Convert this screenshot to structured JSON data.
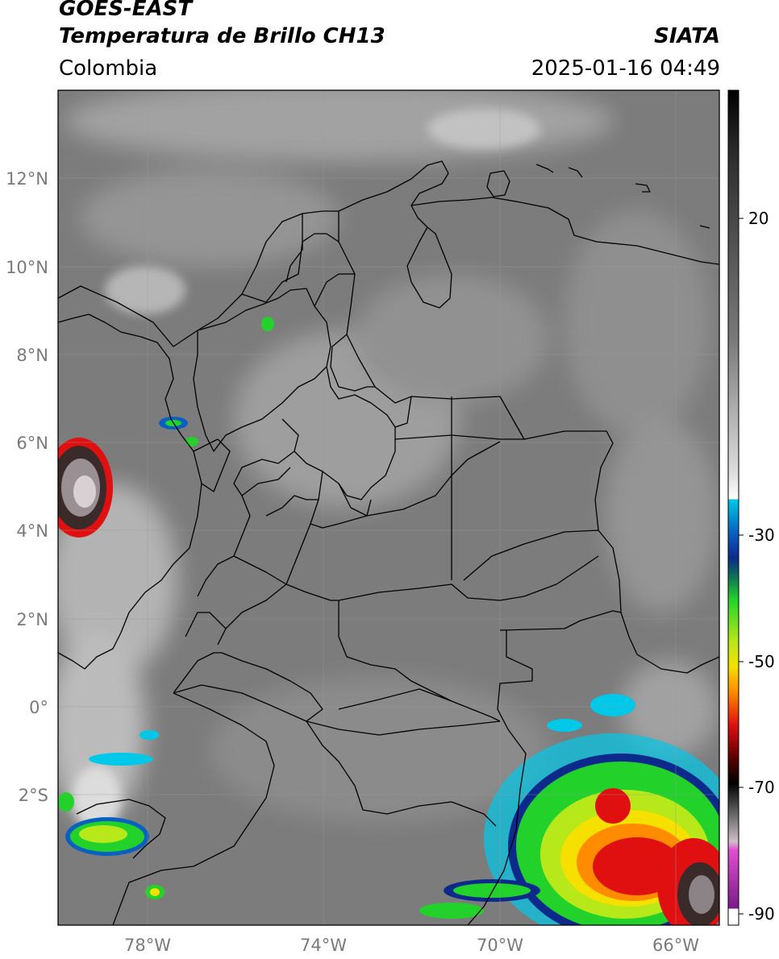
{
  "header": {
    "satellite": "GOES-EAST",
    "product": "Temperatura de Brillo CH13",
    "region": "Colombia",
    "agency": "SIATA",
    "datetime": "2025-01-16 04:49"
  },
  "map": {
    "lat_labels": [
      "12°N",
      "10°N",
      "8°N",
      "6°N",
      "4°N",
      "2°N",
      "0°",
      "2°S"
    ],
    "lon_labels": [
      "78°W",
      "74°W",
      "70°W",
      "66°W"
    ]
  },
  "colorbar": {
    "tick_labels": [
      "20",
      "-30",
      "-50",
      "-70",
      "-90"
    ],
    "colors": {
      "white": "#ffffff",
      "cyan": "#00c8e8",
      "blue": "#0c2a8c",
      "green": "#22d22a",
      "yellow": "#f5e000",
      "orange": "#ff8c00",
      "red": "#e01010",
      "darkred": "#5a0000",
      "black": "#000000",
      "magenta": "#e050d0",
      "purple": "#7a1a8a"
    }
  }
}
